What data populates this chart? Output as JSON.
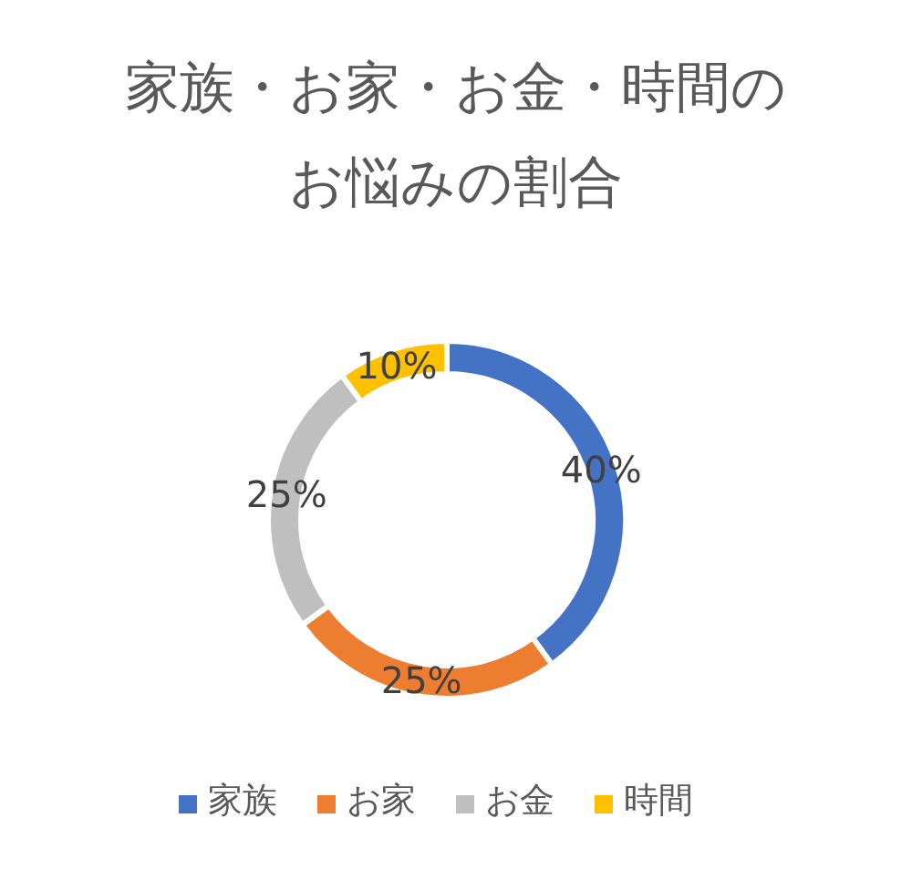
{
  "chart_data": {
    "type": "donut",
    "title": "家族・お家・お金・時間のお悩みの割合",
    "categories": [
      "家族",
      "お家",
      "お金",
      "時間"
    ],
    "values": [
      40,
      25,
      25,
      10
    ],
    "value_labels": [
      "40%",
      "25%",
      "25%",
      "10%"
    ],
    "colors": [
      "#4472c4",
      "#ed7d31",
      "#bfbfbf",
      "#ffc000"
    ],
    "legend": "bottom"
  }
}
